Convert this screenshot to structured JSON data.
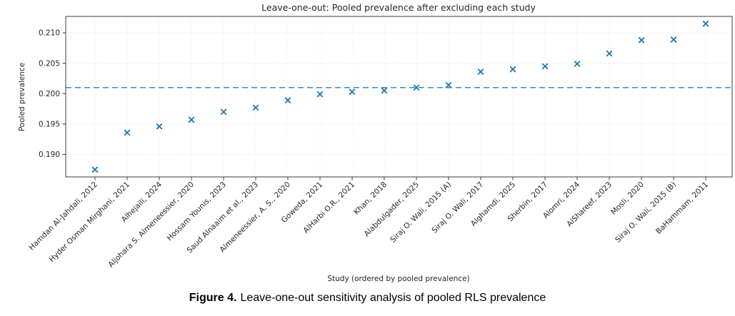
{
  "chart_data": {
    "type": "scatter",
    "title": "Leave-one-out: Pooled prevalence after excluding each study",
    "xlabel": "Study (ordered by pooled prevalence)",
    "ylabel": "Pooled prevalence",
    "marker": "x",
    "marker_color": "#1f77b4",
    "grid": true,
    "legend": "none",
    "ylim": [
      0.1863,
      0.2127
    ],
    "yticks": [
      0.19,
      0.195,
      0.2,
      0.205,
      0.21
    ],
    "ytick_labels": [
      "0.190",
      "0.195",
      "0.200",
      "0.205",
      "0.210"
    ],
    "reference_line": {
      "value": 0.201,
      "style": "dashed",
      "color": "#3987c4"
    },
    "categories": [
      "Hamdan Al-Jahdali, 2012",
      "Hyder Osman Mirghani, 2021",
      "Alhejaili, 2024",
      "Aljohara S. Almeneessier, 2020",
      "Hossam Younis, 2023",
      "Saud Alnaaim et al., 2023",
      "Almeneessier, A. S., 2020",
      "Goweda, 2021",
      "AlHarbi O.R., 2021",
      "Khan, 2018",
      "Alabdulgader, 2025",
      "Siraj O. Wali, 2015 (A)",
      "Siraj O. Wali, 2017",
      "Alghamdi, 2025",
      "Sherbin, 2017",
      "Alomri, 2024",
      "AlShareef, 2023",
      "Mosli, 2020",
      "Siraj O. Wali, 2015 (B)",
      "BaHammam, 2011"
    ],
    "values": [
      0.1875,
      0.1936,
      0.1946,
      0.1957,
      0.197,
      0.1977,
      0.1989,
      0.1999,
      0.2003,
      0.2005,
      0.201,
      0.2014,
      0.2036,
      0.204,
      0.2045,
      0.2049,
      0.2066,
      0.2088,
      0.2089,
      0.2115
    ]
  },
  "caption": {
    "prefix": "Figure 4.",
    "text": "Leave-one-out sensitivity analysis of pooled RLS prevalence"
  }
}
